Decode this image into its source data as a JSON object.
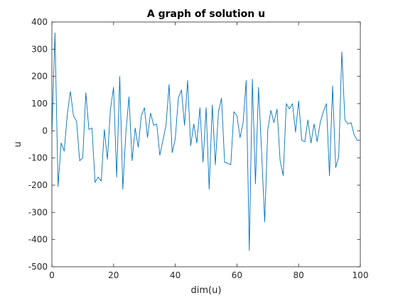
{
  "chart_data": {
    "type": "line",
    "title": "A graph of solution u",
    "xlabel": "dim(u)",
    "ylabel": "u",
    "xlim": [
      0,
      100
    ],
    "ylim": [
      -500,
      400
    ],
    "xticks": [
      "0",
      "20",
      "40",
      "60",
      "80",
      "100"
    ],
    "yticks": [
      "-500",
      "-400",
      "-300",
      "-200",
      "-100",
      "0",
      "100",
      "200",
      "300",
      "400"
    ],
    "grid": false,
    "line_color": "#0072bd",
    "series": [
      {
        "x": [
          0,
          1,
          2,
          3,
          4,
          5,
          6,
          7,
          8,
          9,
          10,
          11,
          12,
          13,
          14,
          15,
          16,
          17,
          18,
          19,
          20,
          21,
          22,
          23,
          24,
          25,
          26,
          27,
          28,
          29,
          30,
          31,
          32,
          33,
          34,
          35,
          36,
          37,
          38,
          39,
          40,
          41,
          42,
          43,
          44,
          45,
          46,
          47,
          48,
          49,
          50,
          51,
          52,
          53,
          54,
          55,
          56,
          57,
          58,
          59,
          60,
          61,
          62,
          63,
          64,
          65,
          66,
          67,
          68,
          69,
          70,
          71,
          72,
          73,
          74,
          75,
          76,
          77,
          78,
          79,
          80,
          81,
          82,
          83,
          84,
          85,
          86,
          87,
          88,
          89,
          90,
          91,
          92,
          93,
          94,
          95,
          96,
          97,
          98,
          99,
          100
        ],
        "values": [
          -10,
          360,
          -205,
          -45,
          -75,
          60,
          145,
          55,
          35,
          -110,
          -100,
          140,
          5,
          10,
          -190,
          -170,
          -185,
          5,
          -105,
          80,
          160,
          -170,
          200,
          -215,
          -5,
          125,
          -110,
          10,
          -60,
          55,
          85,
          -25,
          65,
          20,
          25,
          -90,
          -35,
          20,
          170,
          -80,
          -30,
          120,
          150,
          20,
          185,
          -55,
          25,
          -45,
          85,
          -115,
          85,
          -215,
          95,
          -125,
          70,
          120,
          -115,
          -120,
          -125,
          70,
          55,
          -25,
          30,
          185,
          -440,
          190,
          -195,
          160,
          -80,
          -335,
          5,
          75,
          30,
          80,
          -110,
          -165,
          100,
          80,
          100,
          -5,
          110,
          -35,
          -40,
          40,
          -45,
          25,
          -40,
          30,
          70,
          100,
          -165,
          165,
          -135,
          -95,
          290,
          40,
          25,
          30,
          -15,
          -35,
          -35
        ]
      }
    ]
  }
}
